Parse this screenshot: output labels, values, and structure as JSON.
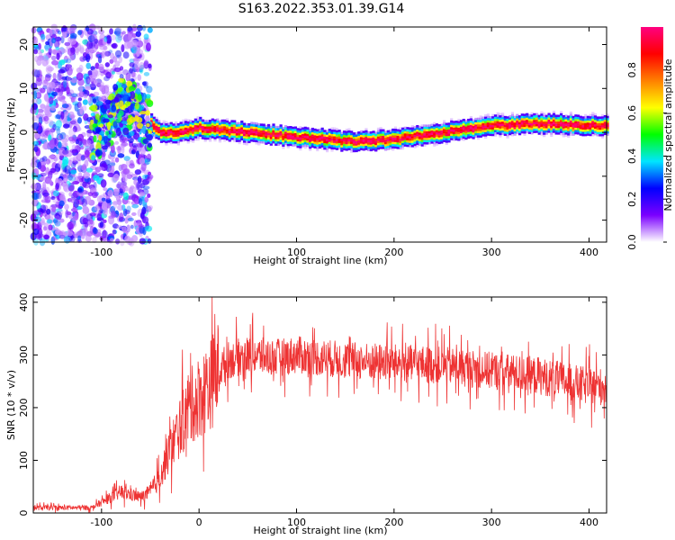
{
  "title": "S163.2022.353.01.39.G14",
  "chart_data": [
    {
      "type": "heatmap",
      "xlabel": "Height of straight line (km)",
      "ylabel": "Frequency (Hz)",
      "xlim": [
        -170,
        418
      ],
      "ylim": [
        -25,
        24
      ],
      "x_ticks": [
        -100,
        0,
        100,
        200,
        300,
        400
      ],
      "y_ticks": [
        -20,
        -10,
        0,
        10,
        20
      ],
      "colorbar": {
        "label": "Normalized spectral amplitude",
        "range": [
          0,
          1
        ],
        "ticks": [
          "0.0",
          "0.2",
          "0.4",
          "0.6",
          "0.8"
        ],
        "colormap": "rainbow",
        "colors": [
          "#ffffff",
          "#7b00ff",
          "#0000ff",
          "#00e5ff",
          "#00ff00",
          "#ffff00",
          "#ff8000",
          "#ff0000",
          "#ff0080"
        ]
      },
      "ridge": {
        "x": [
          -150,
          -120,
          -100,
          -80,
          -60,
          -50,
          -40,
          -20,
          0,
          50,
          100,
          130,
          150,
          175,
          200,
          250,
          280,
          300,
          350,
          418
        ],
        "y": [
          0,
          -2,
          1,
          6,
          4,
          2,
          0,
          0,
          1,
          0,
          -1,
          -1.5,
          -2,
          -2,
          -1.5,
          0,
          1,
          1.5,
          2,
          1.5
        ]
      }
    },
    {
      "type": "line",
      "xlabel": "Height of straight line (km)",
      "ylabel": "SNR (10 * v/v)",
      "xlim": [
        -170,
        418
      ],
      "ylim": [
        0,
        410
      ],
      "x_ticks": [
        -100,
        0,
        100,
        200,
        300,
        400
      ],
      "y_ticks": [
        0,
        100,
        200,
        300,
        400
      ],
      "color": "#ee3333",
      "envelope": {
        "x": [
          -170,
          -140,
          -110,
          -100,
          -80,
          -60,
          -50,
          -40,
          -30,
          -20,
          -10,
          0,
          10,
          20,
          30,
          50,
          80,
          100,
          150,
          200,
          250,
          300,
          350,
          400,
          418
        ],
        "y": [
          10,
          10,
          10,
          20,
          40,
          30,
          40,
          70,
          120,
          160,
          200,
          220,
          240,
          270,
          290,
          300,
          295,
          300,
          290,
          285,
          280,
          270,
          260,
          240,
          240
        ]
      }
    }
  ]
}
